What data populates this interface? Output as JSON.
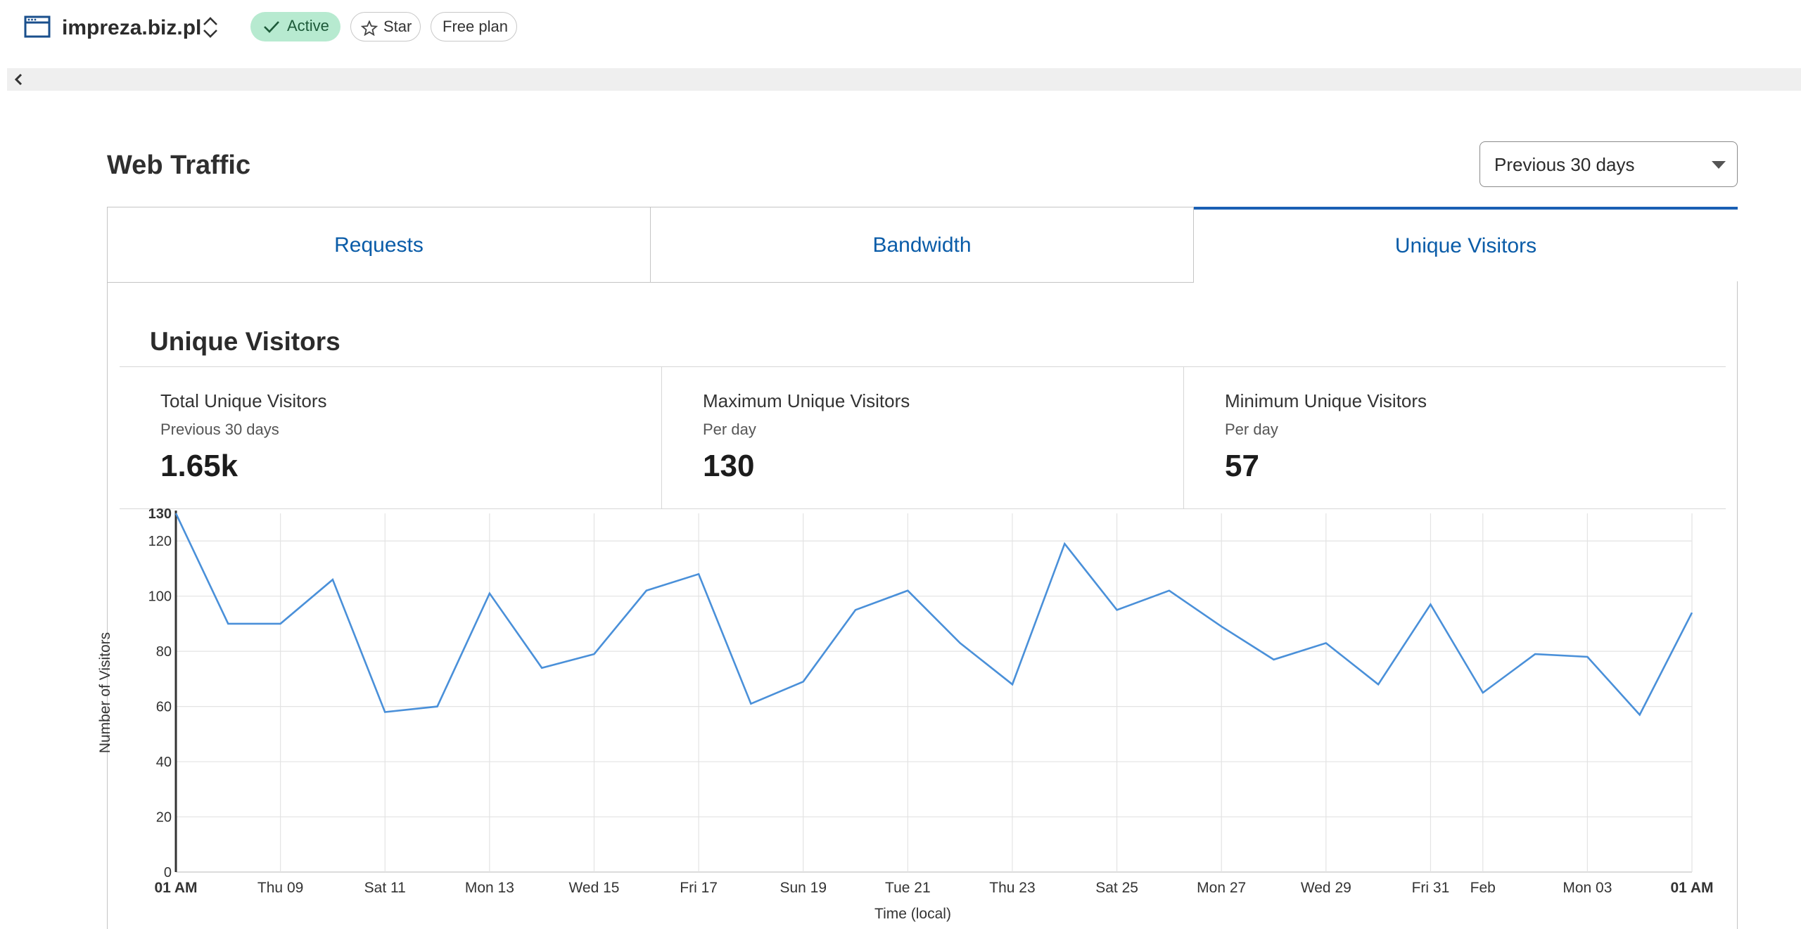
{
  "header": {
    "site_name": "impreza.biz.pl",
    "status_label": "Active",
    "star_label": "Star",
    "plan_label": "Free plan",
    "colors": {
      "status_bg": "#b7ead0",
      "status_text": "#1d5a39"
    }
  },
  "main": {
    "title": "Web Traffic",
    "range_select": {
      "value": "Previous 30 days"
    },
    "tabs": [
      {
        "label": "Requests",
        "selected": false
      },
      {
        "label": "Bandwidth",
        "selected": false
      },
      {
        "label": "Unique Visitors",
        "selected": true
      }
    ],
    "section_title": "Unique Visitors",
    "stats": [
      {
        "label": "Total Unique Visitors",
        "sub": "Previous 30 days",
        "value": "1.65k"
      },
      {
        "label": "Maximum Unique Visitors",
        "sub": "Per day",
        "value": "130"
      },
      {
        "label": "Minimum Unique Visitors",
        "sub": "Per day",
        "value": "57"
      }
    ]
  },
  "icons": [
    "browser-window-icon",
    "chevron-up-down-icon",
    "check-icon",
    "star-icon",
    "chevron-left-icon"
  ],
  "accent_color": "#0a5ca8",
  "chart_data": {
    "type": "line",
    "xlabel": "Time (local)",
    "ylabel": "Number of Visitors",
    "ylim": [
      0,
      130
    ],
    "yticks": [
      0,
      20,
      40,
      60,
      80,
      100,
      120,
      130
    ],
    "x_tick_labels": [
      "01 AM",
      "Thu 09",
      "Sat 11",
      "Mon 13",
      "Wed 15",
      "Fri 17",
      "Sun 19",
      "Tue 21",
      "Thu 23",
      "Sat 25",
      "Mon 27",
      "Wed 29",
      "Fri 31",
      "Feb",
      "Mon 03",
      "01 AM"
    ],
    "grid": true,
    "line_color": "#4a90d9",
    "series": [
      {
        "x": [
          "Jan 07",
          "Jan 08",
          "Jan 09",
          "Jan 10",
          "Jan 11",
          "Jan 12",
          "Jan 13",
          "Jan 14",
          "Jan 15",
          "Jan 16",
          "Jan 17",
          "Jan 18",
          "Jan 19",
          "Jan 20",
          "Jan 21",
          "Jan 22",
          "Jan 23",
          "Jan 24",
          "Jan 25",
          "Jan 26",
          "Jan 27",
          "Jan 28",
          "Jan 29",
          "Jan 30",
          "Jan 31",
          "Feb 01",
          "Feb 02",
          "Feb 03",
          "Feb 04",
          "Feb 05"
        ],
        "values": [
          130,
          90,
          90,
          106,
          58,
          60,
          101,
          74,
          79,
          102,
          108,
          61,
          69,
          95,
          102,
          83,
          68,
          119,
          95,
          102,
          89,
          77,
          83,
          68,
          97,
          65,
          79,
          78,
          57,
          94
        ]
      }
    ]
  }
}
